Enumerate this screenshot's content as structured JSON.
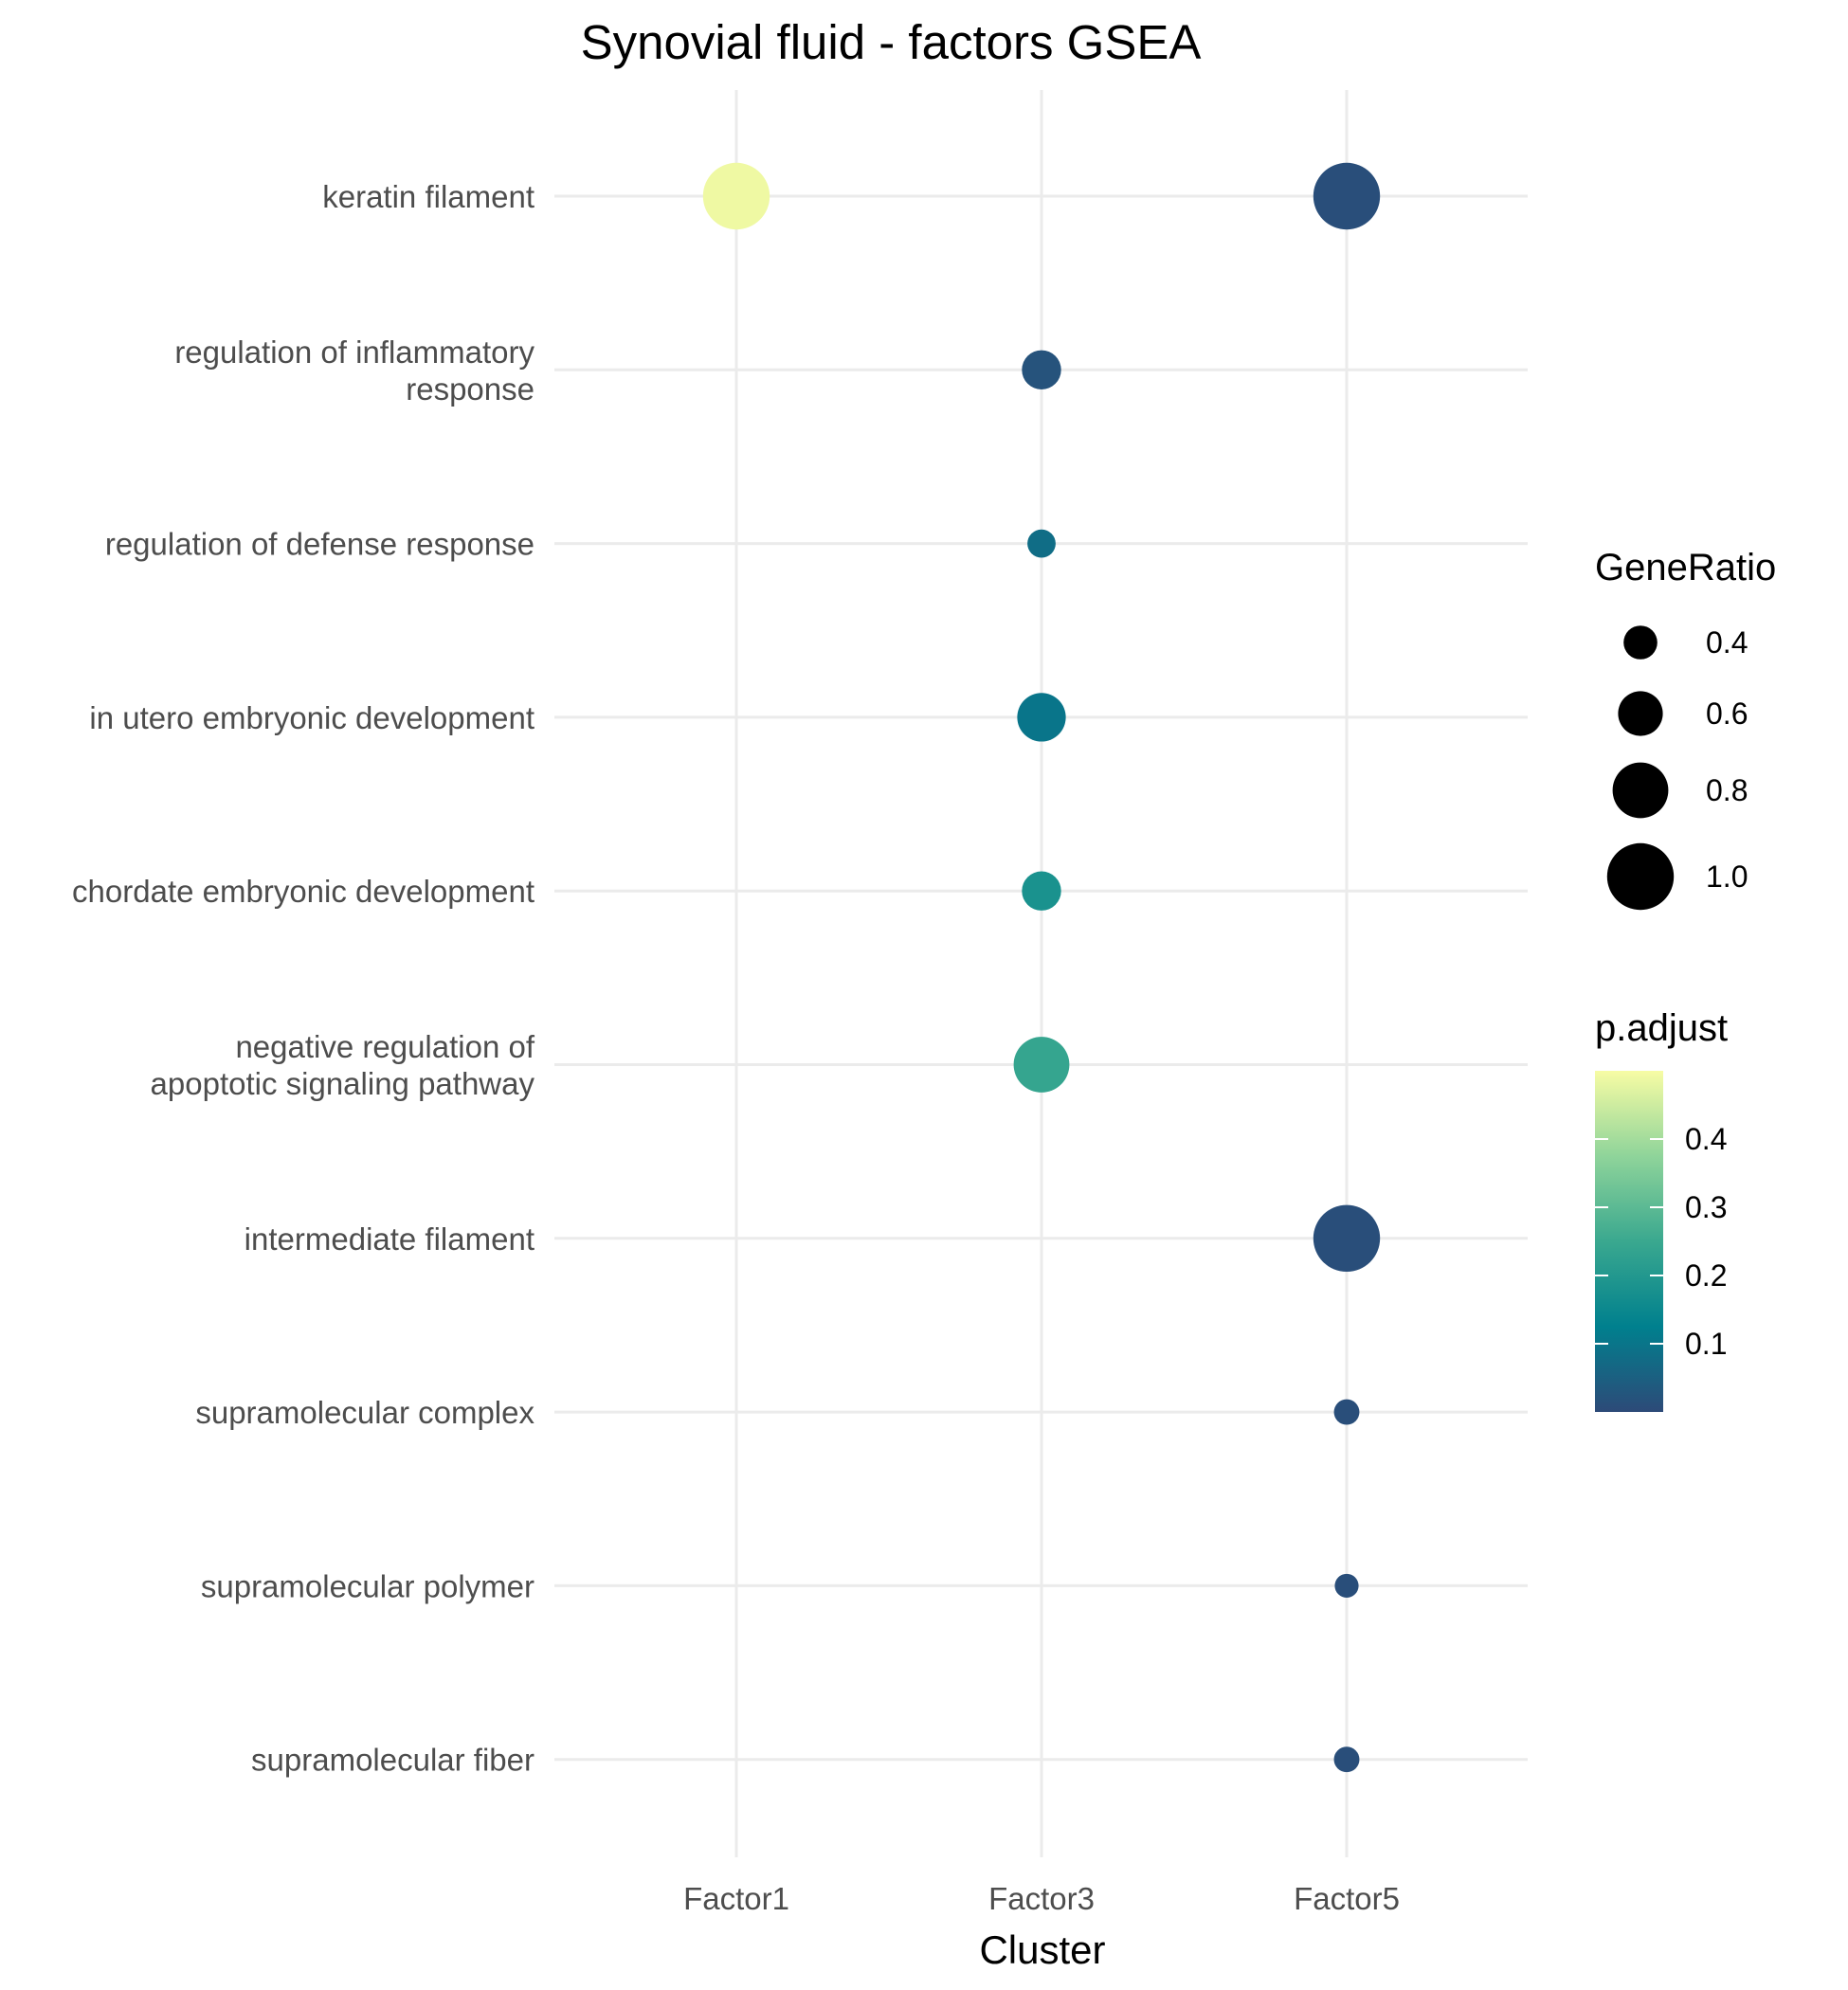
{
  "chart_data": {
    "type": "scatter",
    "title": "Synovial fluid - factors GSEA",
    "xlabel": "Cluster",
    "ylabel": "",
    "categories_x": [
      "Factor1",
      "Factor3",
      "Factor5"
    ],
    "categories_y": [
      [
        "keratin filament"
      ],
      [
        "regulation of inflammatory",
        "response"
      ],
      [
        "regulation of defense response"
      ],
      [
        "in utero embryonic development"
      ],
      [
        "chordate embryonic development"
      ],
      [
        "negative regulation of",
        "apoptotic signaling pathway"
      ],
      [
        "intermediate filament"
      ],
      [
        "supramolecular complex"
      ],
      [
        "supramolecular polymer"
      ],
      [
        "supramolecular fiber"
      ]
    ],
    "points": [
      {
        "x": 0,
        "y": 0,
        "gene_ratio": 1.0,
        "p_adjust": 0.49
      },
      {
        "x": 2,
        "y": 0,
        "gene_ratio": 1.0,
        "p_adjust": 0.01
      },
      {
        "x": 1,
        "y": 1,
        "gene_ratio": 0.5,
        "p_adjust": 0.02
      },
      {
        "x": 1,
        "y": 2,
        "gene_ratio": 0.3,
        "p_adjust": 0.08
      },
      {
        "x": 1,
        "y": 3,
        "gene_ratio": 0.67,
        "p_adjust": 0.1
      },
      {
        "x": 1,
        "y": 4,
        "gene_ratio": 0.5,
        "p_adjust": 0.18
      },
      {
        "x": 1,
        "y": 5,
        "gene_ratio": 0.8,
        "p_adjust": 0.24
      },
      {
        "x": 2,
        "y": 6,
        "gene_ratio": 1.0,
        "p_adjust": 0.01
      },
      {
        "x": 2,
        "y": 7,
        "gene_ratio": 0.25,
        "p_adjust": 0.01
      },
      {
        "x": 2,
        "y": 8,
        "gene_ratio": 0.22,
        "p_adjust": 0.01
      },
      {
        "x": 2,
        "y": 9,
        "gene_ratio": 0.25,
        "p_adjust": 0.01
      }
    ],
    "size_legend": {
      "title": "GeneRatio",
      "values": [
        0.4,
        0.6,
        0.8,
        1.0
      ],
      "labels": [
        "0.4",
        "0.6",
        "0.8",
        "1.0"
      ]
    },
    "color_legend": {
      "title": "p.adjust",
      "range": [
        0.0,
        0.5
      ],
      "ticks": [
        0.4,
        0.3,
        0.2,
        0.1
      ],
      "labels": [
        "0.4",
        "0.3",
        "0.2",
        "0.1"
      ],
      "colorscale": [
        "#2d4a78",
        "#00808e",
        "#3aa88f",
        "#8fd49a",
        "#f7fca4"
      ]
    },
    "grid": true,
    "legend_position": "right"
  }
}
